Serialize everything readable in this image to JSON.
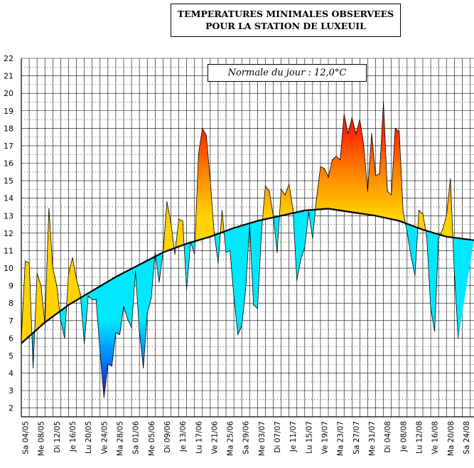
{
  "chart_data": {
    "type": "area",
    "title_line1": "TEMPERATURES MINIMALES OBSERVEES",
    "title_line2": "POUR LA STATION DE LUXEUIL",
    "normale_label": "Normale du jour : 12,0°C",
    "ylim": [
      1.5,
      22
    ],
    "yticks": [
      2,
      3,
      4,
      5,
      6,
      7,
      8,
      9,
      10,
      11,
      12,
      13,
      14,
      15,
      16,
      17,
      18,
      19,
      20,
      21,
      22
    ],
    "x_start_day": -1,
    "x_end_day": 114,
    "x_tick_labels": [
      "Sa 04/05",
      "Me 08/05",
      "Di 12/05",
      "Je 16/05",
      "Lu 20/05",
      "Ve 24/05",
      "Ma 28/05",
      "Sa 01/06",
      "Me 05/06",
      "Di 09/06",
      "Je 13/06",
      "Lu 17/06",
      "Ve 21/06",
      "Ma 25/06",
      "Sa 29/06",
      "Me 03/07",
      "Di 07/07",
      "Je 11/07",
      "Lu 15/07",
      "Ve 19/07",
      "Ma 23/07",
      "Sa 27/07",
      "Me 31/07",
      "Di 04/08",
      "Je 08/08",
      "Lu 12/08",
      "Ve 16/08",
      "Ma 20/08",
      "Sa 24/08"
    ],
    "normal_series": {
      "name": "Normale",
      "x": [
        -1,
        5,
        11,
        17,
        23,
        29,
        35,
        41,
        47,
        53,
        59,
        65,
        71,
        77,
        83,
        89,
        95,
        101,
        107,
        114
      ],
      "y": [
        5.7,
        6.9,
        7.9,
        8.7,
        9.5,
        10.2,
        10.9,
        11.4,
        11.8,
        12.3,
        12.7,
        13.0,
        13.3,
        13.4,
        13.2,
        13.0,
        12.7,
        12.2,
        11.8,
        11.6
      ]
    },
    "observed_series": {
      "name": "Temperatures minimales",
      "x": [
        -1,
        0,
        1,
        2,
        3,
        4,
        5,
        6,
        7,
        8,
        9,
        10,
        11,
        12,
        13,
        14,
        15,
        16,
        17,
        18,
        19,
        20,
        21,
        22,
        23,
        24,
        25,
        26,
        27,
        28,
        29,
        30,
        31,
        32,
        33,
        34,
        35,
        36,
        37,
        38,
        39,
        40,
        41,
        42,
        43,
        44,
        45,
        46,
        47,
        48,
        49,
        50,
        51,
        52,
        53,
        54,
        55,
        56,
        57,
        58,
        59,
        60,
        61,
        62,
        63,
        64,
        65,
        66,
        67,
        68,
        69,
        70,
        71,
        72,
        73,
        74,
        75,
        76,
        77,
        78,
        79,
        80,
        81,
        82,
        83,
        84,
        85,
        86,
        87,
        88,
        89,
        90,
        91,
        92,
        93,
        94,
        95,
        96,
        97,
        98,
        99,
        100,
        101,
        102,
        103,
        104,
        105,
        106,
        107,
        108,
        109,
        110
      ],
      "y": [
        6.0,
        10.4,
        10.3,
        4.3,
        9.7,
        9.0,
        6.8,
        13.4,
        10.0,
        9.0,
        7.0,
        6.0,
        9.7,
        10.6,
        9.4,
        8.5,
        5.7,
        8.4,
        8.2,
        8.2,
        5.2,
        2.6,
        4.5,
        4.4,
        6.3,
        6.2,
        7.8,
        7.1,
        6.6,
        9.8,
        6.4,
        4.3,
        7.4,
        8.3,
        10.9,
        9.2,
        10.9,
        13.8,
        12.6,
        10.8,
        12.8,
        12.7,
        8.8,
        11.5,
        10.8,
        16.5,
        18.0,
        17.6,
        15.0,
        12.0,
        10.3,
        13.3,
        10.9,
        11.0,
        8.4,
        6.2,
        6.7,
        8.8,
        12.5,
        7.9,
        7.7,
        12.0,
        14.7,
        14.4,
        13.0,
        10.9,
        14.5,
        14.2,
        14.8,
        13.4,
        9.3,
        10.5,
        11.2,
        13.2,
        11.7,
        14.0,
        15.8,
        15.7,
        15.2,
        16.2,
        16.4,
        16.2,
        18.8,
        17.7,
        18.6,
        17.7,
        18.5,
        17.0,
        14.4,
        17.7,
        15.3,
        15.4,
        19.5,
        14.4,
        14.2,
        18.0,
        17.8,
        13.2,
        12.1,
        10.7,
        9.6,
        13.3,
        13.1,
        11.8,
        7.7,
        6.4,
        11.7,
        12.2,
        13.0,
        15.1,
        9.8,
        6.0
      ]
    }
  }
}
